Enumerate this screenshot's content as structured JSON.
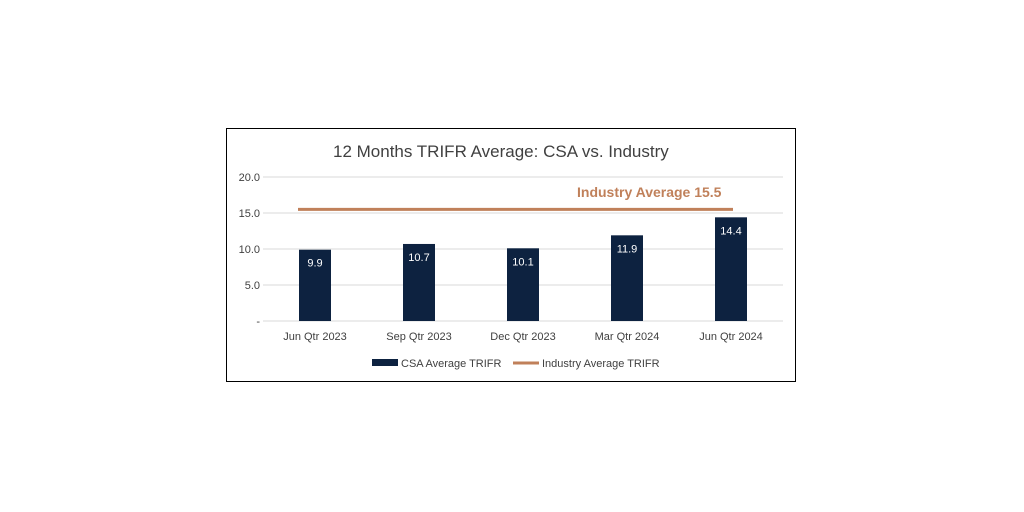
{
  "chart_data": {
    "type": "bar",
    "title": "12 Months TRIFR Average: CSA vs. Industry",
    "categories": [
      "Jun Qtr 2023",
      "Sep Qtr 2023",
      "Dec Qtr 2023",
      "Mar Qtr 2024",
      "Jun Qtr 2024"
    ],
    "series": [
      {
        "name": "CSA Average TRIFR",
        "type": "bar",
        "values": [
          9.9,
          10.7,
          10.1,
          11.9,
          14.4
        ],
        "color": "#0d2240"
      },
      {
        "name": "Industry Average TRIFR",
        "type": "line",
        "values": [
          15.5,
          15.5,
          15.5,
          15.5,
          15.5
        ],
        "color": "#c0805a"
      }
    ],
    "data_labels": [
      "9.9",
      "10.7",
      "10.1",
      "11.9",
      "14.4"
    ],
    "annotation": {
      "text": "Industry Average 15.5",
      "color": "#c0805a"
    },
    "ylim": [
      0,
      20
    ],
    "yticks": [
      0,
      5,
      10,
      15,
      20
    ],
    "ytick_labels": [
      "-",
      "5.0",
      "10.0",
      "15.0",
      "20.0"
    ],
    "grid": true,
    "legend": "bottom",
    "xlabel": "",
    "ylabel": ""
  }
}
